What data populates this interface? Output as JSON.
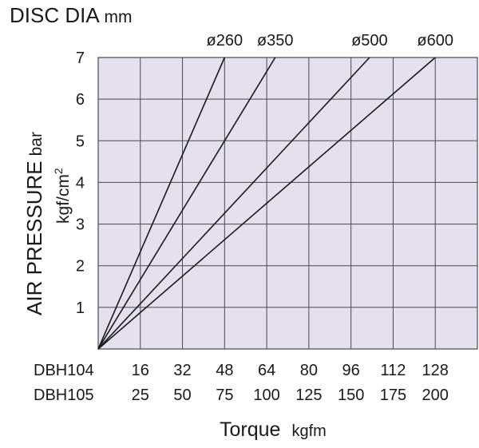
{
  "chart_data": {
    "type": "line",
    "title": "DISC DIA",
    "title_unit": "mm",
    "xlabel": "Torque",
    "xlabel_unit": "kgfm",
    "ylabel": "AIR PRESSURE",
    "ylabel_unit_primary": "bar",
    "ylabel_unit_secondary": "kgf/cm",
    "ylabel_unit_secondary_sup": "2",
    "x_axis_rows": [
      {
        "model": "DBH104",
        "ticks": [
          "16",
          "32",
          "48",
          "64",
          "80",
          "96",
          "112",
          "128"
        ]
      },
      {
        "model": "DBH105",
        "ticks": [
          "25",
          "50",
          "75",
          "100",
          "125",
          "150",
          "175",
          "200"
        ]
      }
    ],
    "x_ticks_dbh105": [
      25,
      50,
      75,
      100,
      125,
      150,
      175,
      200
    ],
    "xlim": [
      0,
      225
    ],
    "ylim": [
      0,
      7
    ],
    "y_ticks": [
      "1",
      "2",
      "3",
      "4",
      "5",
      "6",
      "7"
    ],
    "grid": true,
    "plot_background": "#e4e0ed",
    "grid_color": "#4a4a4a",
    "line_color": "#1a1a1a",
    "series": [
      {
        "name": "ø260",
        "x": [
          0,
          75
        ],
        "y": [
          0,
          7
        ]
      },
      {
        "name": "ø350",
        "x": [
          0,
          105
        ],
        "y": [
          0,
          7
        ]
      },
      {
        "name": "ø500",
        "x": [
          0,
          161
        ],
        "y": [
          0,
          7
        ]
      },
      {
        "name": "ø600",
        "x": [
          0,
          200
        ],
        "y": [
          0,
          7
        ]
      }
    ]
  }
}
